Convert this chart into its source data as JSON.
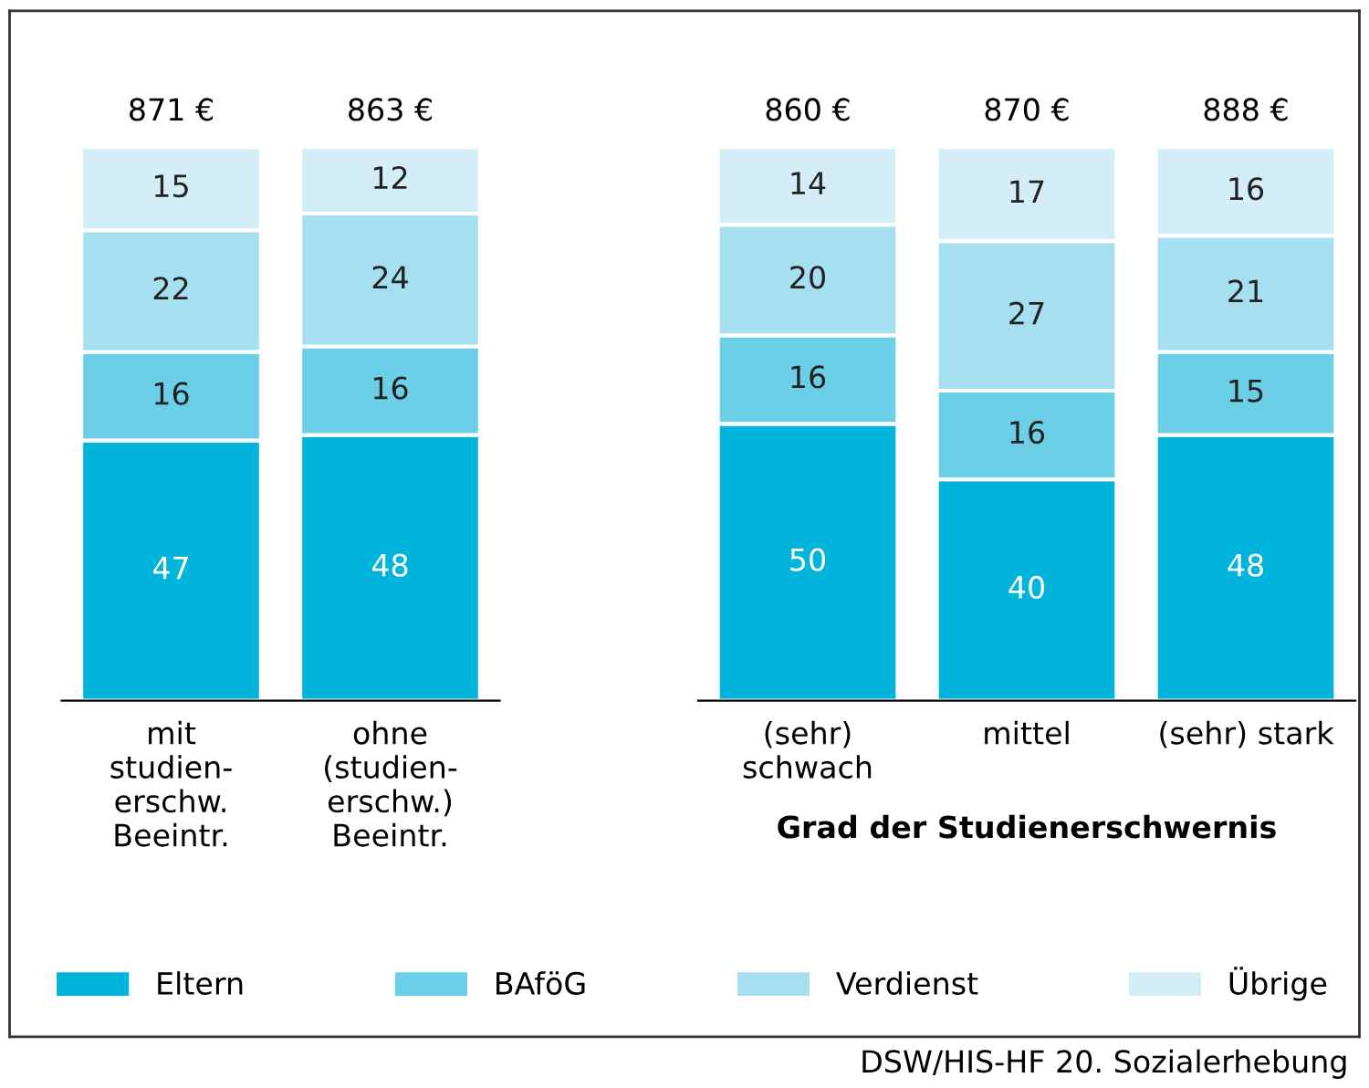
{
  "chart_data": [
    {
      "type": "bar",
      "stacked": true,
      "data_labels": true,
      "categories": [
        "mit\nstudien-\nerschw.\nBeeintr.",
        "ohne\n(studien-\nerschw.)\nBeeintr."
      ],
      "series": [
        {
          "color": "#00b4dc",
          "values": [
            47,
            48
          ]
        },
        {
          "color": "#6ccfe8",
          "values": [
            16,
            16
          ]
        },
        {
          "color": "#a6dff0",
          "values": [
            22,
            24
          ]
        },
        {
          "color": "#d4eef8",
          "values": [
            15,
            12
          ]
        }
      ],
      "annotations": [
        {
          "text": "871 €",
          "x": "mit\nstudien-\nerschw.\nBeeintr.",
          "y": 100
        },
        {
          "text": "863 €",
          "x": "ohne\n(studien-\nerschw.)\nBeeintr.",
          "y": 100
        }
      ],
      "grid": false
    },
    {
      "type": "bar",
      "stacked": true,
      "data_labels": true,
      "xlabel": "Grad der Studienerschwernis",
      "legend": "bottom",
      "categories": [
        "(sehr)\nschwach",
        "mittel",
        "(sehr) stark"
      ],
      "series": [
        {
          "name": "Eltern",
          "color": "#00b4dc",
          "values": [
            50,
            40,
            48
          ]
        },
        {
          "name": "BAföG",
          "color": "#6ccfe8",
          "values": [
            16,
            16,
            15
          ]
        },
        {
          "name": "Verdienst",
          "color": "#a6dff0",
          "values": [
            20,
            27,
            21
          ]
        },
        {
          "name": "Übrige",
          "color": "#d4eef8",
          "values": [
            14,
            17,
            16
          ]
        }
      ],
      "grid": false,
      "annotations": [
        {
          "text": "860 €",
          "x": "(sehr)\nschwach",
          "y": 100
        },
        {
          "text": "870 €",
          "x": "mittel",
          "y": 100
        },
        {
          "text": "888 €",
          "x": "(sehr) stark",
          "y": 100
        },
        "DSW/HIS-HF 20. Sozialerhebung"
      ]
    }
  ]
}
